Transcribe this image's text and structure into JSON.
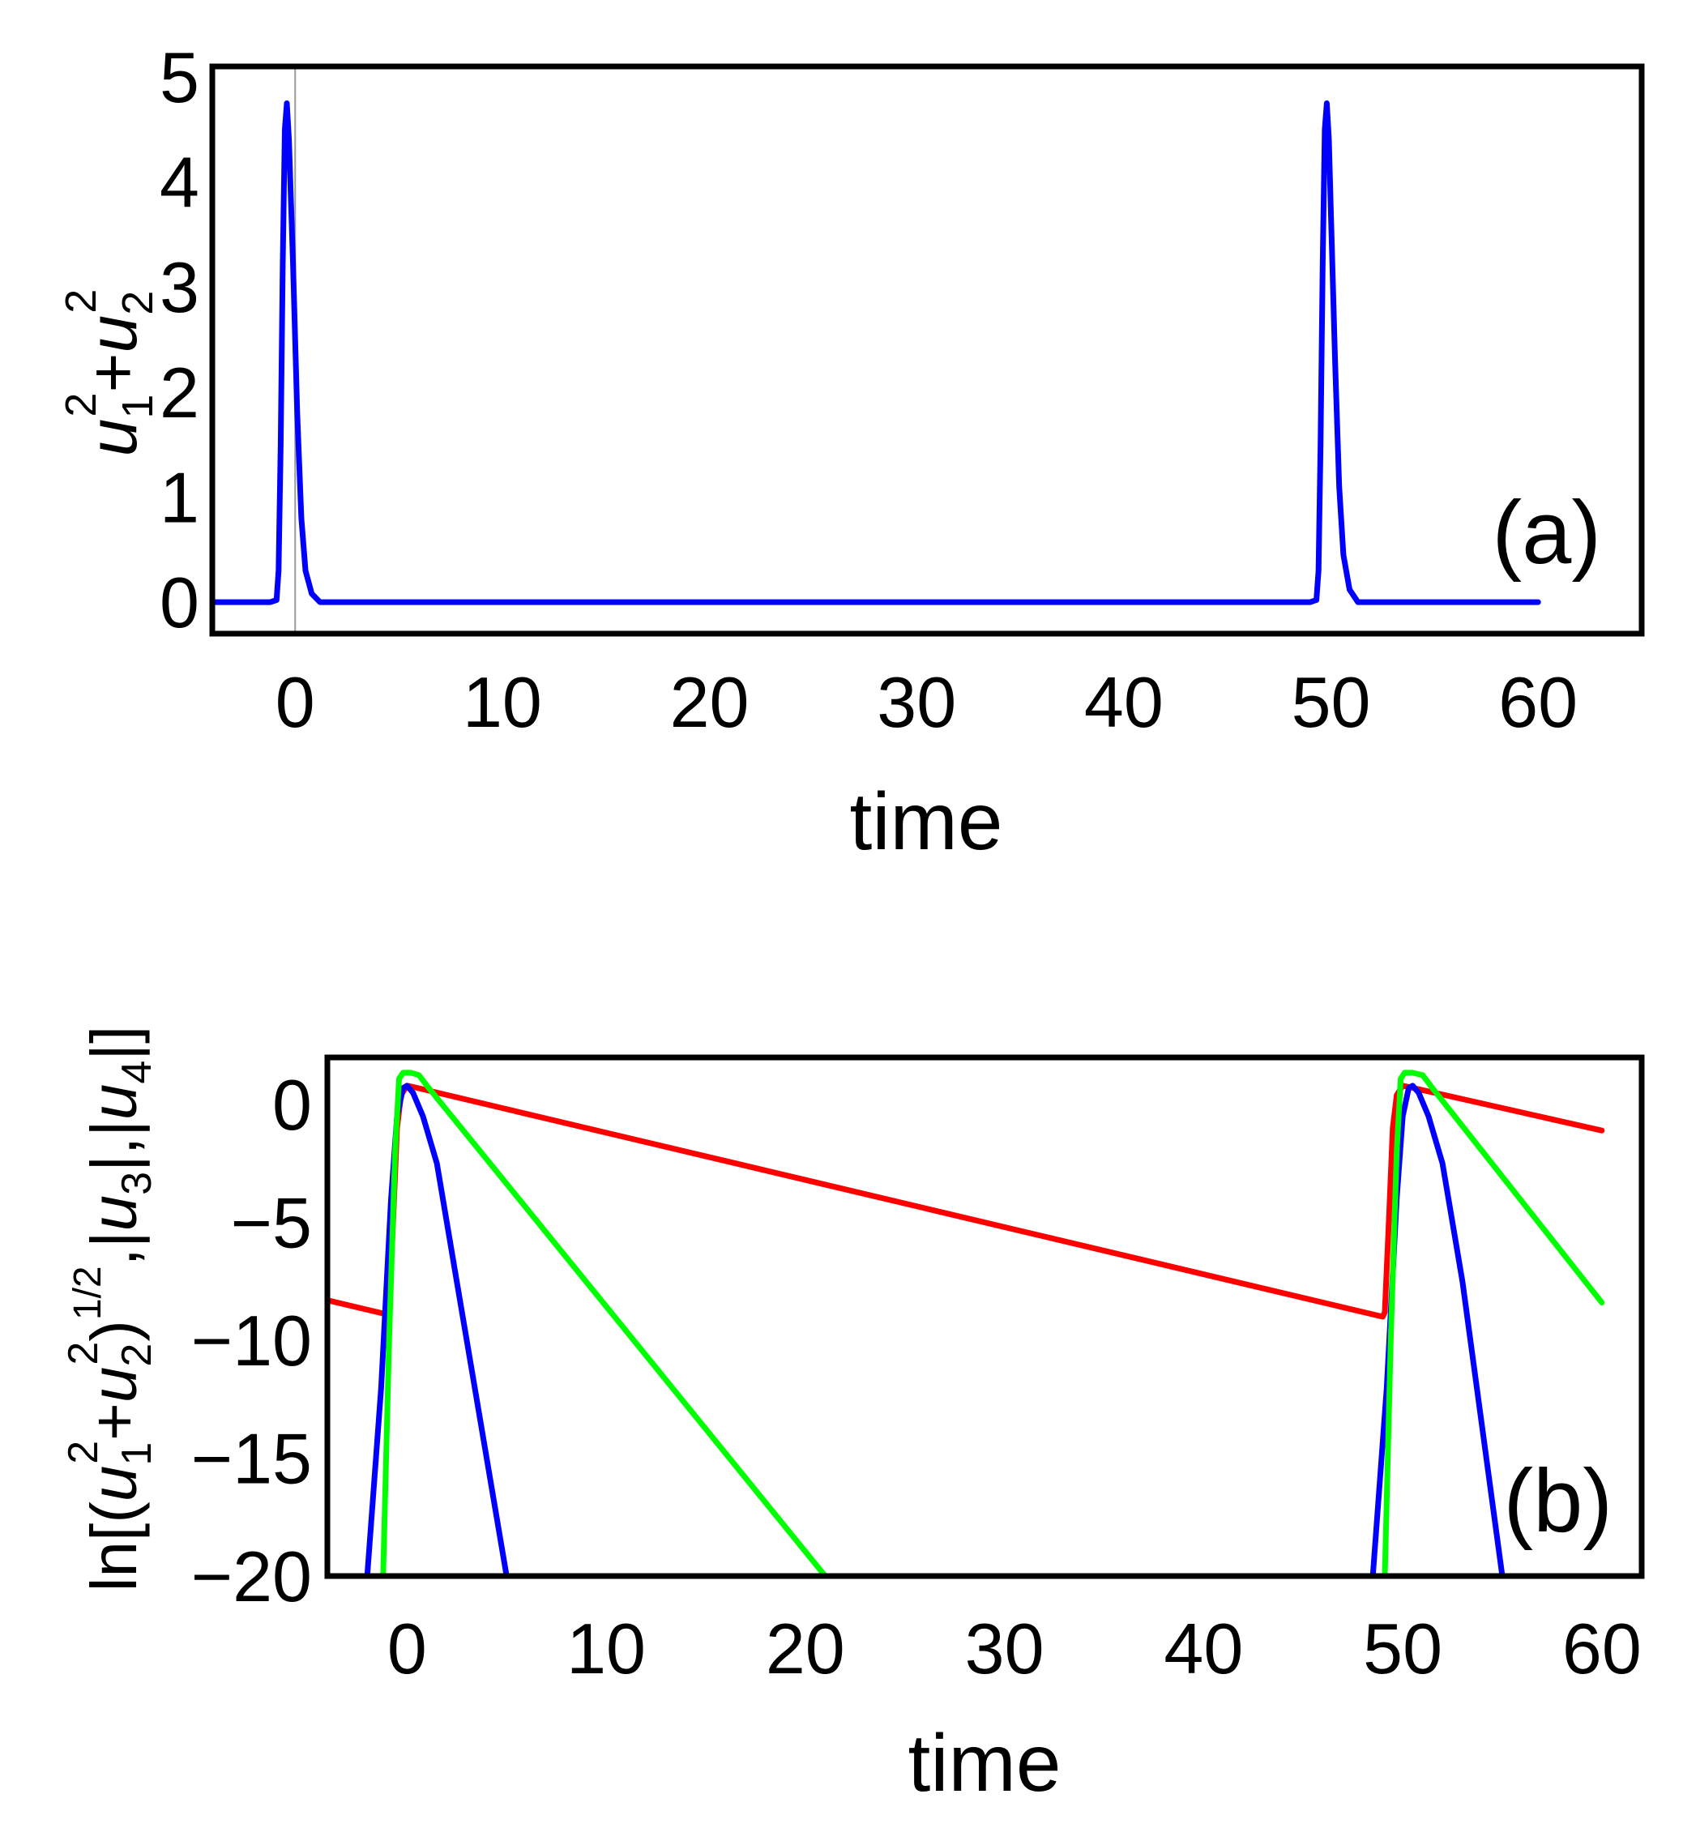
{
  "chart_data": [
    {
      "type": "line",
      "panel": "(a)",
      "xlabel": "time",
      "ylabel": "u_1^2+u_2^2",
      "xlim": [
        -4,
        65
      ],
      "ylim": [
        -0.3,
        5.1
      ],
      "xticks": [
        "0",
        "10",
        "20",
        "30",
        "40",
        "50",
        "60"
      ],
      "yticks": [
        "0",
        "1",
        "2",
        "3",
        "4",
        "5"
      ],
      "series": [
        {
          "name": "u1^2+u2^2",
          "color": "#0000ff",
          "x": [
            -4,
            -1.2,
            -0.9,
            -0.8,
            -0.7,
            -0.6,
            -0.5,
            -0.4,
            -0.3,
            -0.1,
            0.1,
            0.3,
            0.5,
            0.8,
            1.2,
            49,
            49.3,
            49.4,
            49.5,
            49.6,
            49.7,
            49.8,
            49.9,
            50.0,
            50.2,
            50.4,
            50.6,
            50.9,
            51.3,
            60
          ],
          "y": [
            0,
            0,
            0.02,
            0.3,
            1.5,
            3.2,
            4.5,
            4.75,
            4.4,
            3.2,
            1.8,
            0.8,
            0.3,
            0.08,
            0,
            0,
            0.02,
            0.3,
            1.5,
            3.2,
            4.5,
            4.75,
            4.4,
            3.7,
            2.3,
            1.1,
            0.45,
            0.12,
            0,
            0
          ]
        }
      ]
    },
    {
      "type": "line",
      "panel": "(b)",
      "xlabel": "time",
      "ylabel": "ln[(u_1^2+u_2^2)^(1/2), |u_3|, |u_4|]",
      "xlim": [
        -4,
        62
      ],
      "ylim": [
        -20,
        2
      ],
      "xticks": [
        "0",
        "10",
        "20",
        "30",
        "40",
        "50",
        "60"
      ],
      "yticks": [
        "0",
        "−5",
        "−10",
        "−15",
        "−20"
      ],
      "series": [
        {
          "name": "ln|u_3|",
          "color": "#ff0000",
          "x": [
            -4,
            -1.0,
            -0.9,
            -0.7,
            -0.5,
            -0.3,
            0.0,
            0.3,
            49.0,
            49.1,
            49.3,
            49.5,
            49.7,
            50.0,
            50.3,
            60
          ],
          "y": [
            -8.3,
            -8.9,
            -8.7,
            -5.0,
            -1.0,
            0.4,
            0.8,
            0.75,
            -9.0,
            -8.8,
            -5.0,
            -1.0,
            0.4,
            0.8,
            0.75,
            -1.1
          ]
        },
        {
          "name": "ln sqrt(u_1^2+u_2^2)",
          "color": "#0000ff",
          "x": [
            -2.0,
            -1.3,
            -0.8,
            -0.5,
            -0.2,
            0.0,
            0.3,
            0.8,
            1.5,
            2.5,
            3.5,
            5.0,
            48.5,
            49.2,
            49.7,
            50.0,
            50.3,
            50.5,
            50.8,
            51.3,
            52.0,
            53.0,
            55.0
          ],
          "y": [
            -20,
            -12,
            -4,
            -0.5,
            0.7,
            0.8,
            0.5,
            -0.5,
            -2.5,
            -7.5,
            -12.5,
            -20,
            -20,
            -12,
            -4,
            -0.5,
            0.7,
            0.8,
            0.5,
            -0.5,
            -2.5,
            -7.5,
            -20
          ]
        },
        {
          "name": "ln|u_4|",
          "color": "#00ff00",
          "x": [
            -1.2,
            -0.9,
            -0.6,
            -0.4,
            -0.2,
            0.2,
            0.6,
            1.0,
            21.0,
            49.1,
            49.4,
            49.7,
            49.9,
            50.1,
            50.5,
            51.0,
            51.4,
            60
          ],
          "y": [
            -20,
            -10,
            -2,
            1.1,
            1.35,
            1.35,
            1.25,
            0.8,
            -20,
            -20,
            -10,
            -2,
            1.1,
            1.35,
            1.35,
            1.25,
            0.8,
            -8.4
          ]
        }
      ]
    }
  ]
}
